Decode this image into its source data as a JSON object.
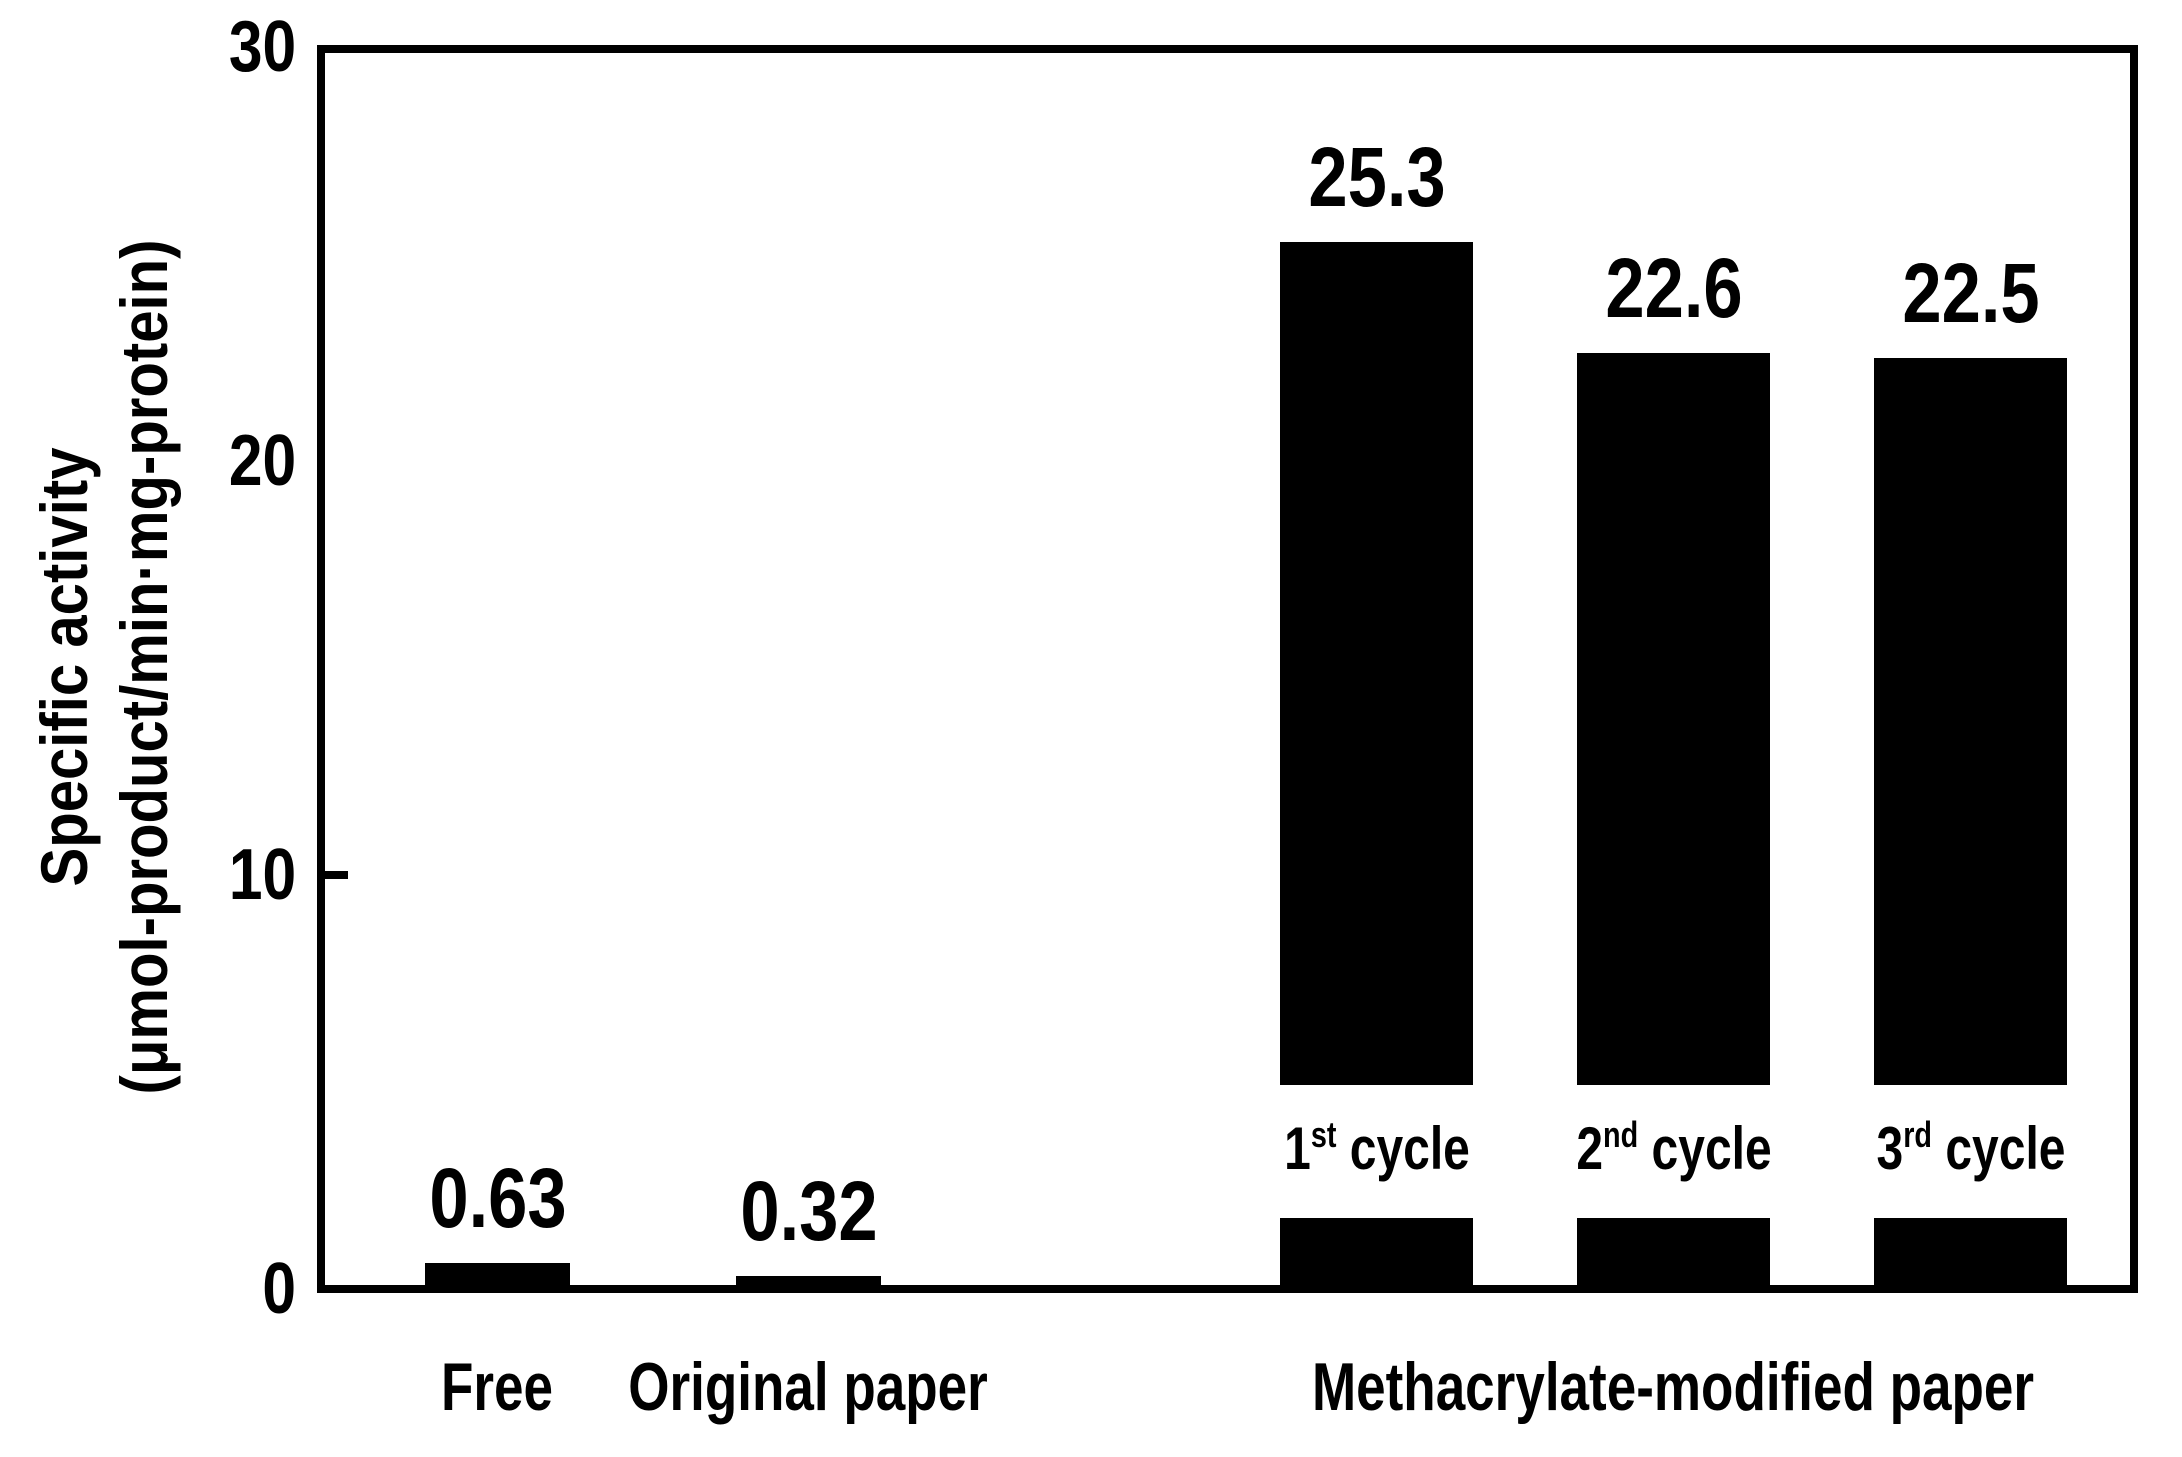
{
  "figure": {
    "background_color": "#ffffff",
    "ink_color": "#000000"
  },
  "y_axis": {
    "title_line1": "Specific activity",
    "title_line2": "(μmol-product/min·mg-protein)",
    "tick_labels": [
      "30",
      "20",
      "10",
      "0"
    ],
    "visible_tick_marks": [
      10
    ]
  },
  "x_axis": {
    "category_labels": [
      "Free",
      "Original paper",
      "Methacrylate-modified paper"
    ]
  },
  "chart_data": {
    "type": "bar",
    "title": "",
    "xlabel": "",
    "ylabel": "Specific activity (μmol-product/min·mg-protein)",
    "ylim": [
      0,
      30
    ],
    "ytick_values": [
      30,
      20,
      10,
      0
    ],
    "grid": false,
    "legend": null,
    "bar_color": "#000000",
    "categories": [
      "Free",
      "Original paper",
      "Methacrylate-modified paper"
    ],
    "bars": [
      {
        "category": "Free",
        "value": 0.63,
        "value_label": "0.63",
        "cycle": null
      },
      {
        "category": "Original paper",
        "value": 0.32,
        "value_label": "0.32",
        "cycle": null
      },
      {
        "category": "Methacrylate-modified paper",
        "value": 25.3,
        "value_label": "25.3",
        "cycle": {
          "ordinal": "1",
          "suffix": "st",
          "word": "cycle"
        }
      },
      {
        "category": "Methacrylate-modified paper",
        "value": 22.6,
        "value_label": "22.6",
        "cycle": {
          "ordinal": "2",
          "suffix": "nd",
          "word": "cycle"
        }
      },
      {
        "category": "Methacrylate-modified paper",
        "value": 22.5,
        "value_label": "22.5",
        "cycle": {
          "ordinal": "3",
          "suffix": "rd",
          "word": "cycle"
        }
      }
    ],
    "annotations": [
      "1st cycle",
      "2nd cycle",
      "3rd cycle"
    ]
  }
}
